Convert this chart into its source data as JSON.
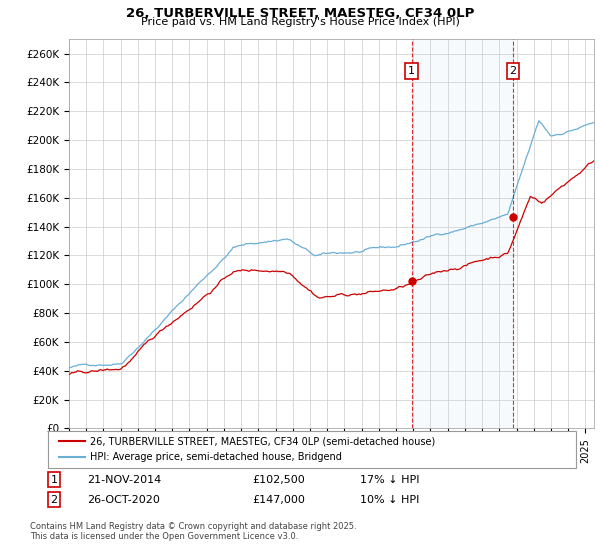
{
  "title": "26, TURBERVILLE STREET, MAESTEG, CF34 0LP",
  "subtitle": "Price paid vs. HM Land Registry's House Price Index (HPI)",
  "ylabel_ticks": [
    "£0",
    "£20K",
    "£40K",
    "£60K",
    "£80K",
    "£100K",
    "£120K",
    "£140K",
    "£160K",
    "£180K",
    "£200K",
    "£220K",
    "£240K",
    "£260K"
  ],
  "ylim": [
    0,
    270000
  ],
  "ytick_vals": [
    0,
    20000,
    40000,
    60000,
    80000,
    100000,
    120000,
    140000,
    160000,
    180000,
    200000,
    220000,
    240000,
    260000
  ],
  "hpi_color": "#6baed6",
  "price_color": "#cc0000",
  "sale1": {
    "label": "1",
    "date": "21-NOV-2014",
    "price": "£102,500",
    "hpi_diff": "17% ↓ HPI",
    "year": 2014.9
  },
  "sale2": {
    "label": "2",
    "date": "26-OCT-2020",
    "price": "£147,000",
    "hpi_diff": "10% ↓ HPI",
    "year": 2020.8
  },
  "legend_line1": "26, TURBERVILLE STREET, MAESTEG, CF34 0LP (semi-detached house)",
  "legend_line2": "HPI: Average price, semi-detached house, Bridgend",
  "footnote": "Contains HM Land Registry data © Crown copyright and database right 2025.\nThis data is licensed under the Open Government Licence v3.0.",
  "xmin": 1995,
  "xmax": 2025.5,
  "background_color": "#ffffff"
}
